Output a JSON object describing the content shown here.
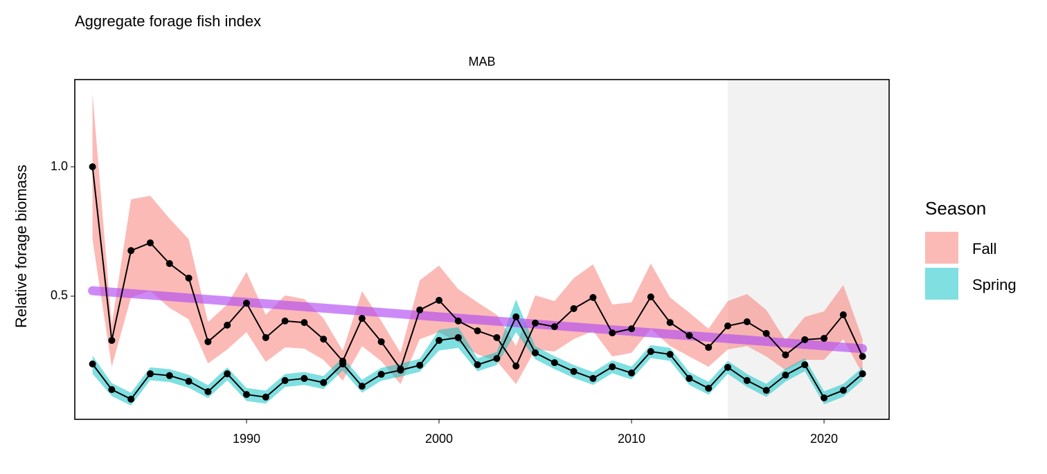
{
  "chart_data": {
    "type": "line",
    "title": "Aggregate forage fish index",
    "facet": "MAB",
    "y_label": "Relative forage biomass",
    "legend_title": "Season",
    "x": [
      1982,
      1983,
      1984,
      1985,
      1986,
      1987,
      1988,
      1989,
      1990,
      1991,
      1992,
      1993,
      1994,
      1995,
      1996,
      1997,
      1998,
      1999,
      2000,
      2001,
      2002,
      2003,
      2004,
      2005,
      2006,
      2007,
      2008,
      2009,
      2010,
      2011,
      2012,
      2013,
      2014,
      2015,
      2016,
      2017,
      2018,
      2019,
      2020,
      2021,
      2022
    ],
    "series": [
      {
        "name": "Fall",
        "color": "#F8766D",
        "values": [
          1.0,
          0.329,
          0.676,
          0.706,
          0.626,
          0.57,
          0.324,
          0.388,
          0.473,
          0.34,
          0.404,
          0.398,
          0.334,
          0.249,
          0.414,
          0.324,
          0.219,
          0.447,
          0.484,
          0.404,
          0.366,
          0.34,
          0.23,
          0.396,
          0.382,
          0.452,
          0.495,
          0.358,
          0.374,
          0.497,
          0.398,
          0.348,
          0.302,
          0.385,
          0.401,
          0.356,
          0.273,
          0.332,
          0.337,
          0.428,
          0.267
        ],
        "lower": [
          0.72,
          0.227,
          0.495,
          0.52,
          0.455,
          0.41,
          0.24,
          0.294,
          0.361,
          0.246,
          0.302,
          0.297,
          0.254,
          0.174,
          0.307,
          0.249,
          0.16,
          0.334,
          0.361,
          0.321,
          0.275,
          0.249,
          0.16,
          0.294,
          0.286,
          0.334,
          0.366,
          0.267,
          0.281,
          0.374,
          0.307,
          0.267,
          0.227,
          0.294,
          0.307,
          0.267,
          0.214,
          0.254,
          0.254,
          0.334,
          0.2
        ],
        "upper": [
          1.283,
          0.39,
          0.874,
          0.888,
          0.8,
          0.72,
          0.4,
          0.468,
          0.594,
          0.428,
          0.503,
          0.489,
          0.414,
          0.289,
          0.519,
          0.404,
          0.281,
          0.561,
          0.618,
          0.527,
          0.476,
          0.428,
          0.307,
          0.503,
          0.481,
          0.57,
          0.623,
          0.468,
          0.476,
          0.626,
          0.495,
          0.436,
          0.374,
          0.481,
          0.508,
          0.447,
          0.329,
          0.42,
          0.441,
          0.543,
          0.334
        ]
      },
      {
        "name": "Spring",
        "color": "#00BFC4",
        "values": [
          0.238,
          0.139,
          0.102,
          0.2,
          0.193,
          0.171,
          0.131,
          0.2,
          0.12,
          0.11,
          0.174,
          0.182,
          0.166,
          0.238,
          0.152,
          0.198,
          0.214,
          0.233,
          0.329,
          0.34,
          0.235,
          0.259,
          0.42,
          0.281,
          0.243,
          0.209,
          0.182,
          0.227,
          0.203,
          0.286,
          0.275,
          0.182,
          0.144,
          0.225,
          0.174,
          0.136,
          0.195,
          0.235,
          0.107,
          0.136,
          0.2
        ],
        "lower": [
          0.2,
          0.114,
          0.077,
          0.175,
          0.168,
          0.146,
          0.106,
          0.175,
          0.095,
          0.085,
          0.149,
          0.157,
          0.141,
          0.213,
          0.127,
          0.173,
          0.189,
          0.208,
          0.29,
          0.3,
          0.21,
          0.234,
          0.361,
          0.256,
          0.218,
          0.184,
          0.157,
          0.202,
          0.178,
          0.261,
          0.25,
          0.157,
          0.119,
          0.2,
          0.149,
          0.111,
          0.17,
          0.21,
          0.082,
          0.111,
          0.175
        ],
        "upper": [
          0.27,
          0.164,
          0.127,
          0.225,
          0.218,
          0.196,
          0.156,
          0.225,
          0.145,
          0.135,
          0.199,
          0.207,
          0.191,
          0.263,
          0.177,
          0.223,
          0.239,
          0.258,
          0.37,
          0.38,
          0.26,
          0.284,
          0.487,
          0.306,
          0.268,
          0.234,
          0.207,
          0.252,
          0.228,
          0.311,
          0.3,
          0.207,
          0.169,
          0.25,
          0.199,
          0.161,
          0.22,
          0.26,
          0.132,
          0.161,
          0.225
        ]
      }
    ],
    "trend": {
      "x": [
        1982,
        2022
      ],
      "values": [
        0.521,
        0.297
      ],
      "color": "#B24BF3"
    },
    "shaded_from": 2015,
    "xlim": [
      1981.08,
      2023.38
    ],
    "ylim": [
      0.024,
      1.337
    ],
    "xticks": [
      1990,
      2000,
      2010,
      2020
    ],
    "yticks": [
      {
        "value": 0.5,
        "label": "0.5"
      },
      {
        "value": 1.0,
        "label": "1.0"
      }
    ]
  }
}
